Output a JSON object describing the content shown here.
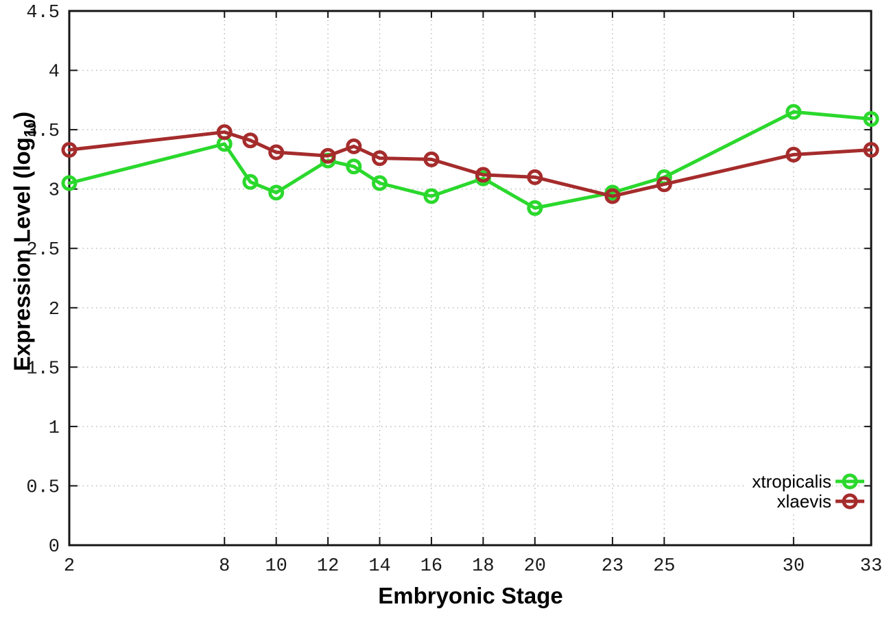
{
  "figure": {
    "background": "#ffffff",
    "y_axis_title_main": "Expression Level (log",
    "y_axis_title_sub": "10",
    "y_axis_title_close": ")",
    "x_axis_title": "Embryonic Stage"
  },
  "chart_data": {
    "type": "line",
    "title": "",
    "xlabel": "Embryonic Stage",
    "ylabel": "Expression Level (log10)",
    "xlim": [
      2,
      33
    ],
    "ylim": [
      0,
      4.5
    ],
    "grid": true,
    "grid_style": "dotted",
    "legend_position": "bottom-right",
    "x_ticks": [
      2,
      8,
      10,
      12,
      14,
      16,
      18,
      20,
      23,
      25,
      30,
      33
    ],
    "y_ticks": [
      0,
      0.5,
      1,
      1.5,
      2,
      2.5,
      3,
      3.5,
      4,
      4.5
    ],
    "y_tick_labels": [
      "0",
      "0.5",
      "1",
      "1.5",
      "2",
      "2.5",
      "3",
      "3.5",
      "4",
      "4.5"
    ],
    "x": [
      2,
      8,
      9,
      10,
      12,
      13,
      14,
      16,
      18,
      20,
      23,
      25,
      30,
      33
    ],
    "series": [
      {
        "name": "xtropicalis",
        "color": "#2bd82d",
        "values": [
          3.05,
          3.38,
          3.06,
          2.97,
          3.24,
          3.19,
          3.05,
          2.94,
          3.09,
          2.84,
          2.97,
          3.1,
          3.65,
          3.59
        ]
      },
      {
        "name": "xlaevis",
        "color": "#a52c2c",
        "values": [
          3.33,
          3.48,
          3.41,
          3.31,
          3.28,
          3.36,
          3.26,
          3.25,
          3.12,
          3.1,
          2.94,
          3.04,
          3.29,
          3.33
        ]
      }
    ]
  }
}
